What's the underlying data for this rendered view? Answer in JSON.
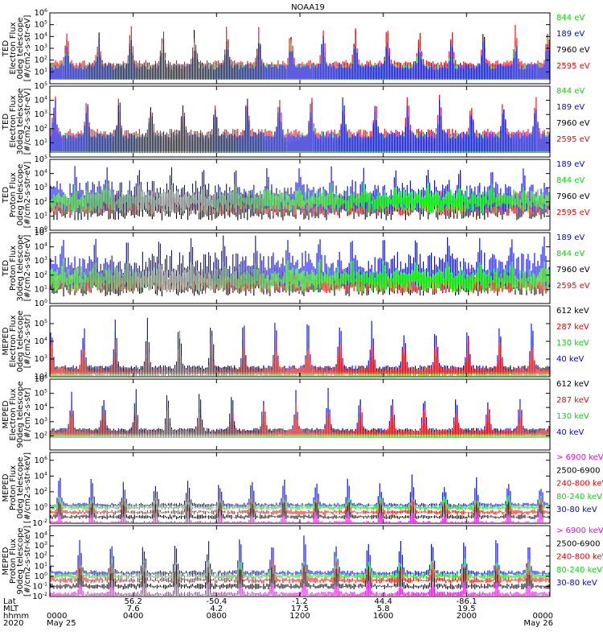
{
  "title": "NOAA19",
  "chart_data": [
    {
      "type": "line",
      "ylabel": [
        "TED",
        "Electron Flux",
        "0deg telescope",
        "[#/cm2-s-str-eV]"
      ],
      "y_log": true,
      "y_ticks": [
        "10^1",
        "10^2",
        "10^3",
        "10^4",
        "10^5",
        "10^6"
      ],
      "ylim": [
        1,
        1000000
      ],
      "series": [
        {
          "name": "7960 eV",
          "color": "#000000",
          "profile": "spiky",
          "base_log": 1.3,
          "peak_log": 4.5
        },
        {
          "name": "2595 eV",
          "color": "#ff0000",
          "profile": "spiky",
          "base_log": 1.5,
          "peak_log": 5.0
        },
        {
          "name": "844 eV",
          "color": "#00e000",
          "profile": "spiky",
          "base_log": 1.2,
          "peak_log": 3.5
        },
        {
          "name": "189 eV",
          "color": "#0000ff",
          "profile": "spiky",
          "base_log": 1.2,
          "peak_log": 3.8
        }
      ]
    },
    {
      "type": "line",
      "ylabel": [
        "TED",
        "Electron Flux",
        "30deg telescope",
        "[#/cm2-s-str-eV]"
      ],
      "y_log": true,
      "y_ticks": [
        "10^1",
        "10^2",
        "10^3",
        "10^4",
        "10^5"
      ],
      "ylim": [
        1,
        100000
      ],
      "series": [
        {
          "name": "7960 eV",
          "color": "#000000",
          "profile": "spiky",
          "base_log": 1.0,
          "peak_log": 3.5
        },
        {
          "name": "2595 eV",
          "color": "#ff0000",
          "profile": "spiky",
          "base_log": 1.5,
          "peak_log": 4.4
        },
        {
          "name": "844 eV",
          "color": "#00e000",
          "profile": "spiky",
          "base_log": 1.2,
          "peak_log": 3.0
        },
        {
          "name": "189 eV",
          "color": "#0000ff",
          "profile": "spiky",
          "base_log": 1.3,
          "peak_log": 4.0
        }
      ]
    },
    {
      "type": "line",
      "ylabel": [
        "TED",
        "Proton Flux",
        "0deg telescope",
        "[#/cm2-s-str-eV]"
      ],
      "y_log": true,
      "y_ticks": [
        "10^0",
        "10^1",
        "10^2",
        "10^3",
        "10^4",
        "10^5"
      ],
      "ylim": [
        1,
        100000
      ],
      "series": [
        {
          "name": "7960 eV",
          "color": "#000000",
          "profile": "dense",
          "base_log": 1.5,
          "peak_log": 3.0
        },
        {
          "name": "2595 eV",
          "color": "#ff0000",
          "profile": "dense",
          "base_log": 1.8,
          "peak_log": 3.0
        },
        {
          "name": "189 eV",
          "color": "#0000ff",
          "profile": "dense",
          "base_log": 2.0,
          "peak_log": 4.2
        },
        {
          "name": "844 eV",
          "color": "#00e000",
          "profile": "dense",
          "base_log": 2.0,
          "peak_log": 3.0
        }
      ]
    },
    {
      "type": "line",
      "ylabel": [
        "TED",
        "Proton Flux",
        "30deg telescope",
        "[#/cm2-s-str-eV]"
      ],
      "y_log": true,
      "y_ticks": [
        "10^0",
        "10^1",
        "10^2",
        "10^3",
        "10^4",
        "10^5"
      ],
      "ylim": [
        1,
        100000
      ],
      "series": [
        {
          "name": "7960 eV",
          "color": "#000000",
          "profile": "dense",
          "base_log": 1.3,
          "peak_log": 2.5
        },
        {
          "name": "2595 eV",
          "color": "#ff0000",
          "profile": "dense",
          "base_log": 1.5,
          "peak_log": 2.8
        },
        {
          "name": "189 eV",
          "color": "#0000ff",
          "profile": "dense",
          "base_log": 2.0,
          "peak_log": 4.5
        },
        {
          "name": "844 eV",
          "color": "#00e000",
          "profile": "dense",
          "base_log": 1.6,
          "peak_log": 2.8
        }
      ]
    },
    {
      "type": "line",
      "ylabel": [
        "MEPED",
        "Electron Flux",
        "0deg telescope",
        "[#/cm2-s-str]"
      ],
      "y_log": true,
      "y_ticks": [
        "10^2",
        "10^3",
        "10^4",
        "10^5"
      ],
      "ylim": [
        100,
        1000000
      ],
      "series": [
        {
          "name": "130 keV",
          "color": "#00e000",
          "profile": "belt",
          "base_log": 2.05,
          "peak_log": 4.5
        },
        {
          "name": "40 keV",
          "color": "#0000ff",
          "profile": "belt",
          "base_log": 2.4,
          "peak_log": 5.3
        },
        {
          "name": "612 keV",
          "color": "#000000",
          "profile": "belt",
          "base_log": 2.4,
          "peak_log": 3.3
        },
        {
          "name": "287 keV",
          "color": "#ff0000",
          "profile": "belt",
          "base_log": 2.3,
          "peak_log": 4.2
        }
      ]
    },
    {
      "type": "line",
      "ylabel": [
        "MEPED",
        "Electron Flux",
        "90deg telescope",
        "[#/cm2-s-str]"
      ],
      "y_log": true,
      "y_ticks": [
        "10^2",
        "10^3",
        "10^4",
        "10^5",
        "10^6"
      ],
      "ylim": [
        10,
        1000000
      ],
      "series": [
        {
          "name": "130 keV",
          "color": "#00e000",
          "profile": "belt",
          "base_log": 2.0,
          "peak_log": 4.6
        },
        {
          "name": "40 keV",
          "color": "#0000ff",
          "profile": "belt",
          "base_log": 2.3,
          "peak_log": 5.3
        },
        {
          "name": "612 keV",
          "color": "#000000",
          "profile": "belt",
          "base_log": 2.3,
          "peak_log": 3.6
        },
        {
          "name": "287 keV",
          "color": "#ff0000",
          "profile": "belt",
          "base_log": 2.2,
          "peak_log": 4.2
        }
      ]
    },
    {
      "type": "line",
      "ylabel": [
        "MEPED",
        "Proton Flux",
        "0deg telescope",
        "[#/cm2-s-str-keV]"
      ],
      "y_log": true,
      "y_ticks": [
        "10^-2",
        "10^0",
        "10^2",
        "10^4",
        "10^6"
      ],
      "ylim": [
        0.01,
        10000000
      ],
      "series": [
        {
          "name": "30-80 keV",
          "color": "#0000ff",
          "profile": "proton",
          "base_log": 0.3,
          "peak_log": 4.0
        },
        {
          "name": "80-240 keV",
          "color": "#00e000",
          "profile": "proton",
          "base_log": 0.0,
          "peak_log": 1.5
        },
        {
          "name": "240-800 keV",
          "color": "#ff0000",
          "profile": "proton",
          "base_log": -0.6,
          "peak_log": 1.2
        },
        {
          "name": "2500-6900",
          "color": "#000000",
          "profile": "proton",
          "base_log": -1.2,
          "peak_log": 0.8
        },
        {
          "name": "> 6900 keV",
          "color": "#ff00ff",
          "profile": "proton",
          "base_log": -2.0,
          "peak_log": -0.5
        }
      ]
    },
    {
      "type": "line",
      "ylabel": [
        "MEPED",
        "Proton Flux",
        "90deg telescope",
        "[#/cm2-s-str-keV]"
      ],
      "y_log": true,
      "y_ticks": [
        "10^-2",
        "10^-1",
        "10^0",
        "10^1",
        "10^2",
        "10^3",
        "10^4"
      ],
      "ylim": [
        0.01,
        100000
      ],
      "series": [
        {
          "name": "30-80 keV",
          "color": "#0000ff",
          "profile": "proton",
          "base_log": 0.3,
          "peak_log": 4.0
        },
        {
          "name": "80-240 keV",
          "color": "#00e000",
          "profile": "proton",
          "base_log": 0.0,
          "peak_log": 1.8
        },
        {
          "name": "240-800 keV",
          "color": "#ff0000",
          "profile": "proton",
          "base_log": -0.4,
          "peak_log": 1.5
        },
        {
          "name": "2500-6900",
          "color": "#000000",
          "profile": "proton",
          "base_log": -1.0,
          "peak_log": 1.0
        },
        {
          "name": "> 6900 keV",
          "color": "#ff00ff",
          "profile": "proton",
          "base_log": -1.8,
          "peak_log": -0.5
        }
      ]
    }
  ],
  "x_axis": {
    "row_labels": [
      "Lat",
      "MLT",
      "hhmm",
      "2020"
    ],
    "ticks": [
      {
        "t": 0.0,
        "lat": "",
        "mlt": "",
        "hhmm": "0000",
        "date": "May 25"
      },
      {
        "t": 0.1667,
        "lat": "56.2",
        "mlt": "7.6",
        "hhmm": "0400",
        "date": ""
      },
      {
        "t": 0.3333,
        "lat": "-50.4",
        "mlt": "4.2",
        "hhmm": "0800",
        "date": ""
      },
      {
        "t": 0.5,
        "lat": "-1.2",
        "mlt": "17.5",
        "hhmm": "1200",
        "date": ""
      },
      {
        "t": 0.6667,
        "lat": "44.4",
        "mlt": "5.8",
        "hhmm": "1600",
        "date": ""
      },
      {
        "t": 0.8333,
        "lat": "-86.1",
        "mlt": "19.5",
        "hhmm": "2000",
        "date": ""
      },
      {
        "t": 1.0,
        "lat": "",
        "mlt": "",
        "hhmm": "0000",
        "date": "May 26"
      }
    ]
  }
}
